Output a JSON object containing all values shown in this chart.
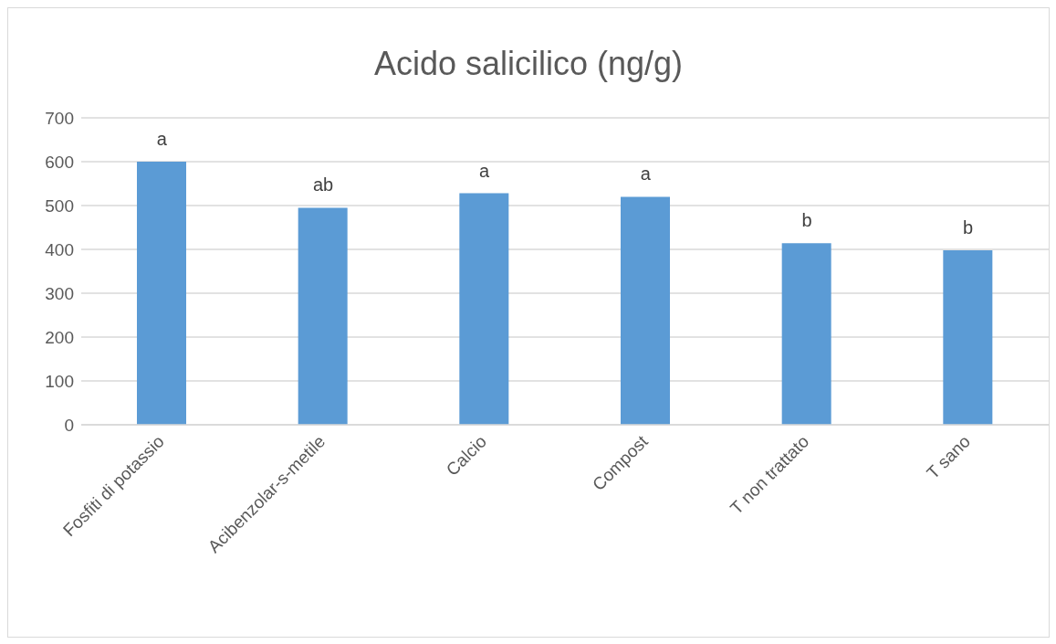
{
  "chart_data": {
    "type": "bar",
    "title": "Acido salicilico (ng/g)",
    "categories": [
      "Fosfiti di potassio",
      "Acibenzolar-s-metile",
      "Calcio",
      "Compost",
      "T non trattato",
      "T sano"
    ],
    "values": [
      600,
      495,
      528,
      520,
      414,
      398
    ],
    "color": "#5b9bd5",
    "ylim": [
      0,
      700
    ],
    "yticks": [
      0,
      100,
      200,
      300,
      400,
      500,
      600,
      700
    ],
    "grid": "y",
    "legend": false,
    "annotations": [
      {
        "text": "a",
        "x": "Fosfiti di potassio",
        "y": 600
      },
      {
        "text": "ab",
        "x": "Acibenzolar-s-metile",
        "y": 495
      },
      {
        "text": "a",
        "x": "Calcio",
        "y": 528
      },
      {
        "text": "a",
        "x": "Compost",
        "y": 520
      },
      {
        "text": "b",
        "x": "T non trattato",
        "y": 414
      },
      {
        "text": "b",
        "x": "T sano",
        "y": 398
      }
    ]
  }
}
